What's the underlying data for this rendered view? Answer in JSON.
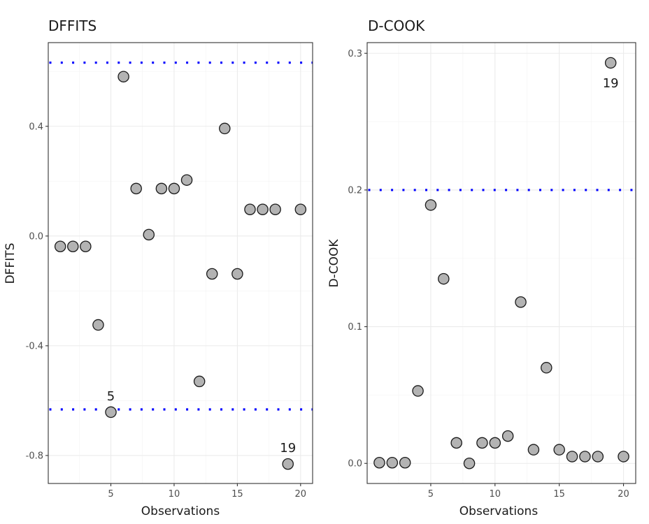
{
  "chart_data": [
    {
      "type": "scatter",
      "title": "DFFITS",
      "xlabel": "Observations",
      "ylabel": "DFFITS",
      "x": [
        1,
        2,
        3,
        4,
        5,
        6,
        7,
        8,
        9,
        10,
        11,
        12,
        13,
        14,
        15,
        16,
        17,
        18,
        19,
        20
      ],
      "y": [
        -0.038,
        -0.038,
        -0.038,
        -0.324,
        -0.642,
        0.581,
        0.173,
        0.005,
        0.173,
        0.173,
        0.204,
        -0.53,
        -0.138,
        0.392,
        -0.138,
        0.097,
        0.097,
        0.097,
        -0.831,
        0.097
      ],
      "xlim": [
        0.05,
        20.95
      ],
      "ylim": [
        -0.902,
        0.705
      ],
      "xticks": [
        5,
        10,
        15,
        20
      ],
      "xtick_labels": [
        "5",
        "10",
        "15",
        "20"
      ],
      "yticks": [
        0.4,
        0.0,
        -0.4,
        -0.8
      ],
      "ytick_labels": [
        "0.4",
        "0.0",
        "-0.4",
        "-0.8"
      ],
      "reference_lines": [
        0.632,
        -0.632
      ],
      "reference_line_color": "#0000ff",
      "reference_line_style": "dotted",
      "point_fill": "#b3b3b3",
      "point_stroke": "#1a1a1a",
      "annotations": [
        {
          "text": "5",
          "x": 5,
          "y": -0.642,
          "position": "above"
        },
        {
          "text": "19",
          "x": 19,
          "y": -0.831,
          "position": "above"
        }
      ],
      "grid": true,
      "legend": "none"
    },
    {
      "type": "scatter",
      "title": "D-COOK",
      "xlabel": "Observations",
      "ylabel": "D-COOK",
      "x": [
        1,
        2,
        3,
        4,
        5,
        6,
        7,
        8,
        9,
        10,
        11,
        12,
        13,
        14,
        15,
        16,
        17,
        18,
        19,
        20
      ],
      "y": [
        0.0005,
        0.0005,
        0.0005,
        0.053,
        0.189,
        0.135,
        0.015,
        0.0,
        0.015,
        0.015,
        0.02,
        0.118,
        0.01,
        0.07,
        0.01,
        0.005,
        0.005,
        0.005,
        0.293,
        0.005
      ],
      "xlim": [
        0.05,
        20.95
      ],
      "ylim": [
        -0.0147,
        0.3078
      ],
      "xticks": [
        5,
        10,
        15,
        20
      ],
      "xtick_labels": [
        "5",
        "10",
        "15",
        "20"
      ],
      "yticks": [
        0.0,
        0.1,
        0.2,
        0.3
      ],
      "ytick_labels": [
        "0.0",
        "0.1",
        "0.2",
        "0.3"
      ],
      "reference_lines": [
        0.2
      ],
      "reference_line_color": "#0000ff",
      "reference_line_style": "dotted",
      "point_fill": "#b3b3b3",
      "point_stroke": "#1a1a1a",
      "annotations": [
        {
          "text": "19",
          "x": 19,
          "y": 0.293,
          "position": "below"
        }
      ],
      "grid": true,
      "legend": "none"
    }
  ]
}
